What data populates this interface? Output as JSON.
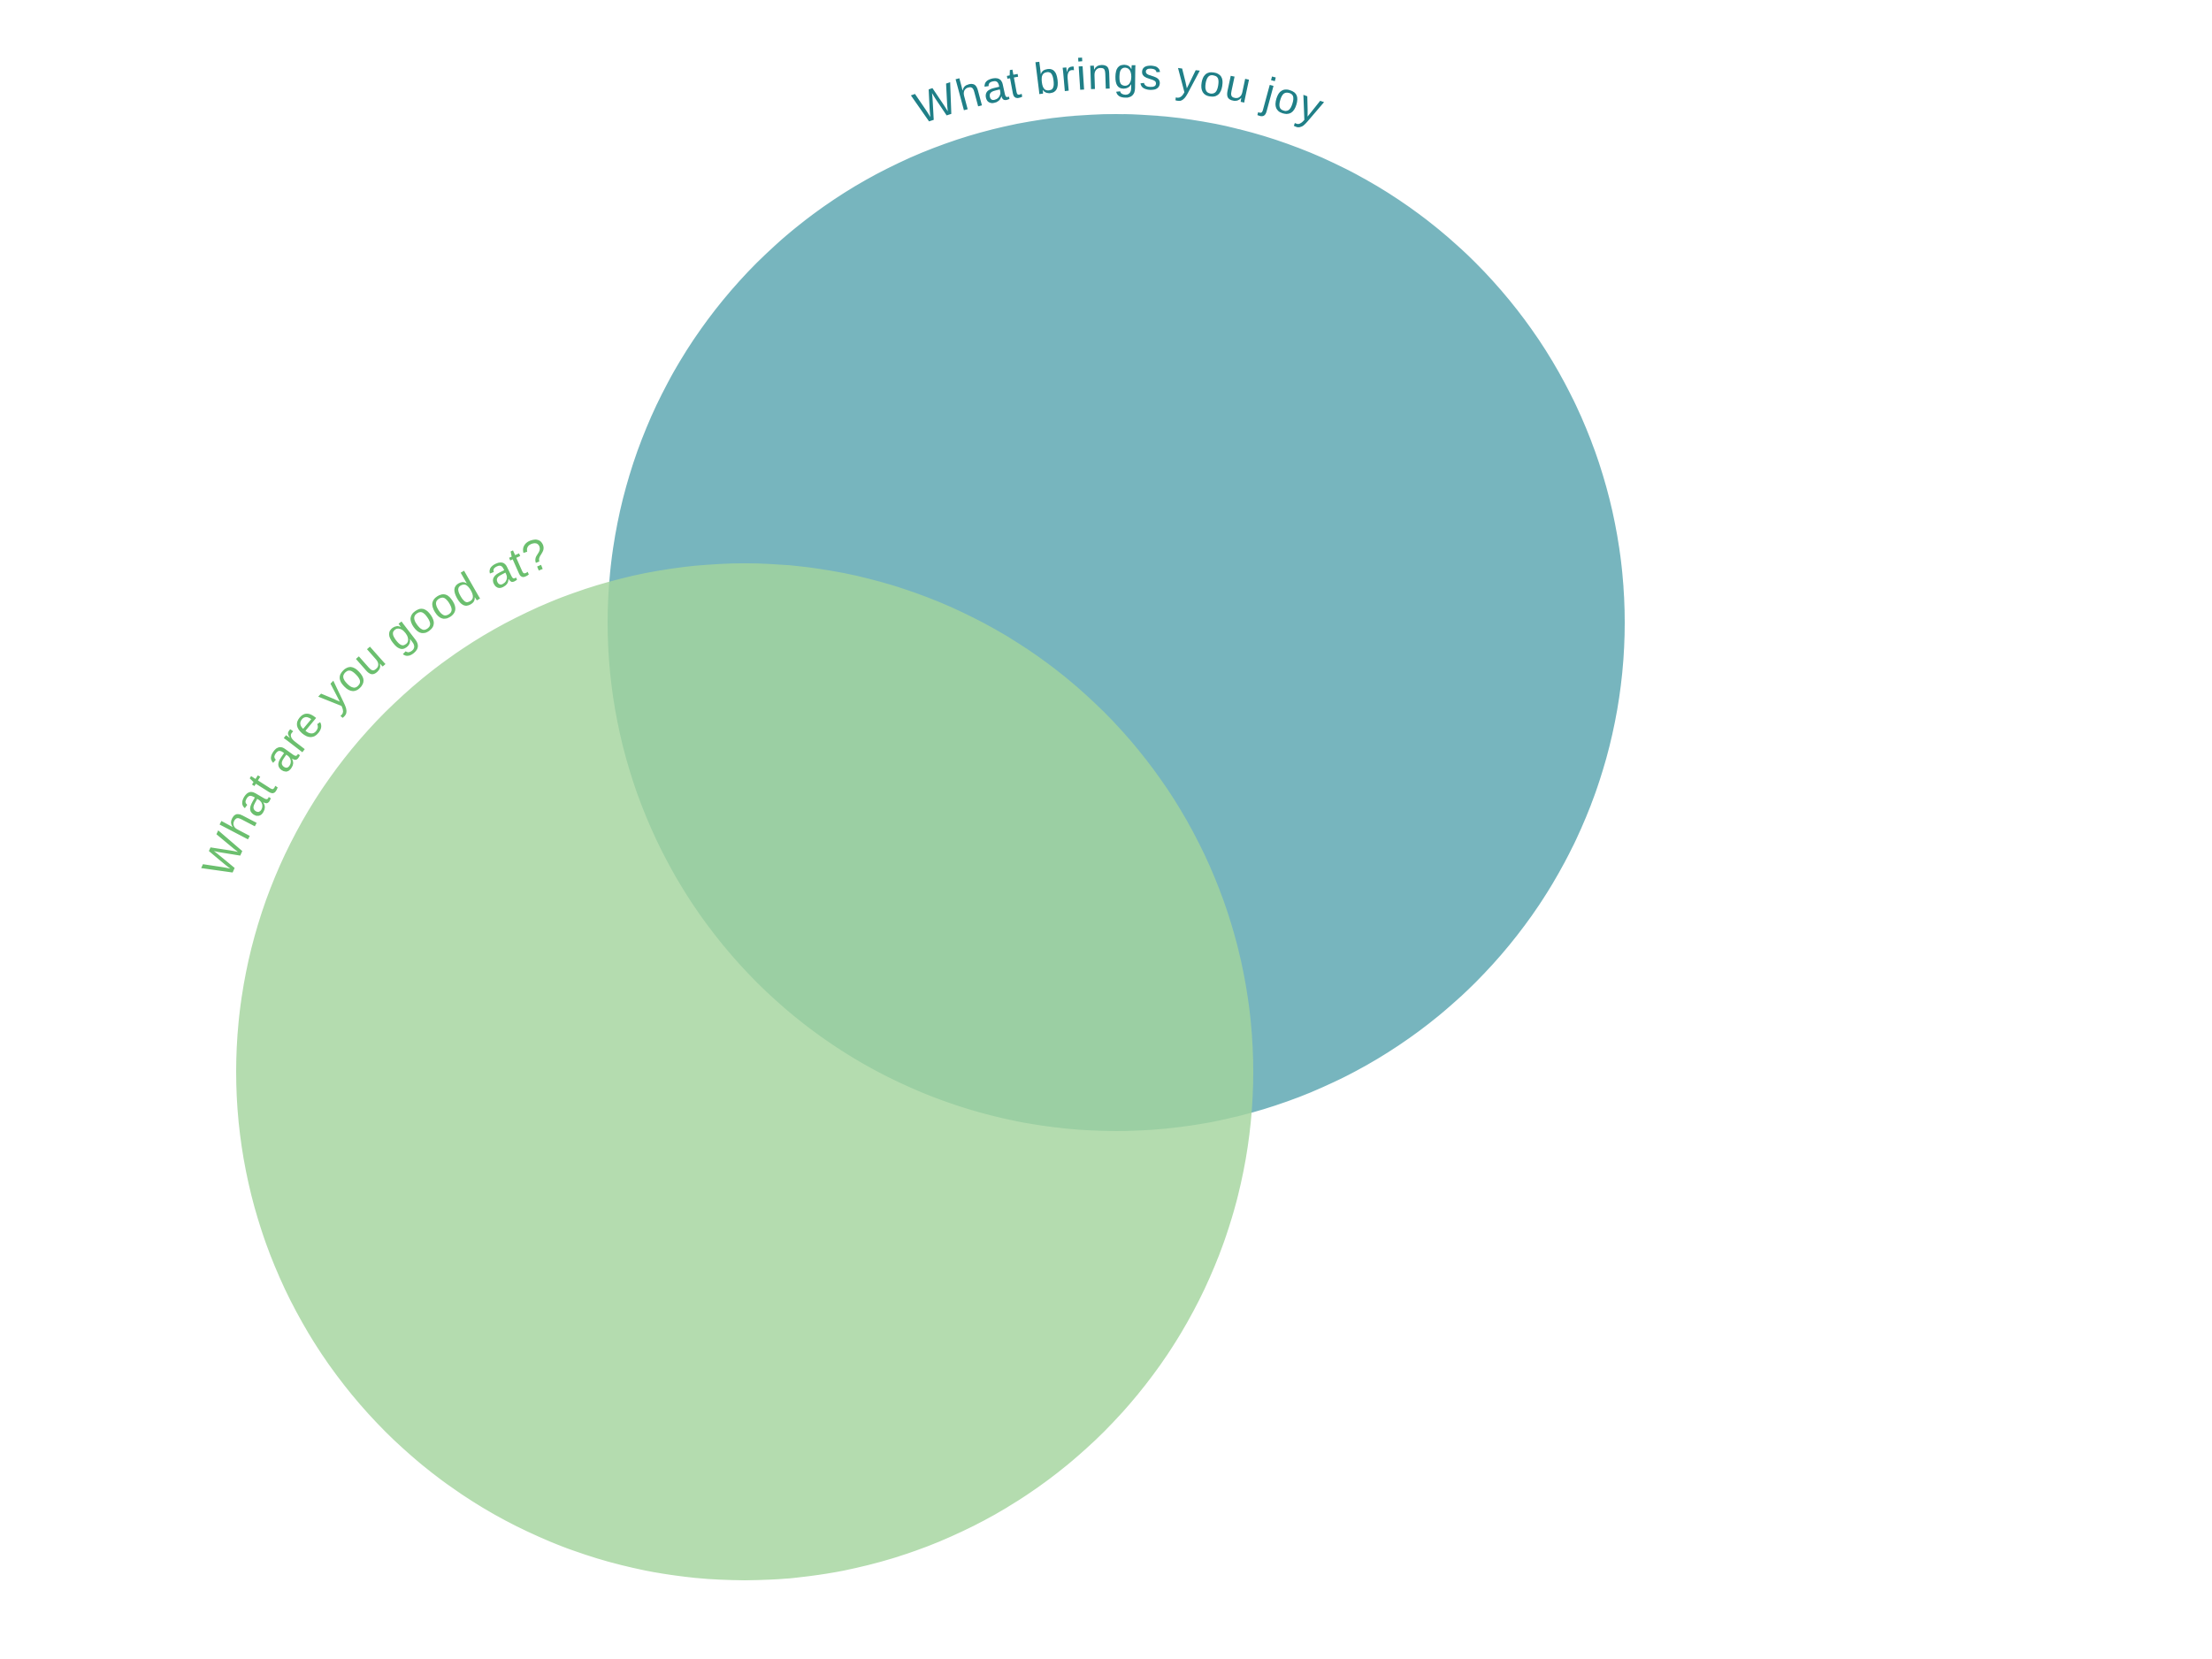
{
  "diagram": {
    "circles": [
      {
        "id": "joy",
        "label": "What brings you joy",
        "fill_color": "#5FA8B3",
        "label_color": "#1F7F87"
      },
      {
        "id": "good-at",
        "label": "What are you good at?",
        "fill_color": "#A3D49E",
        "label_color": "#6BBF6E"
      }
    ],
    "overlap_color": "#84BE98",
    "background_color": "#FFFFFF"
  }
}
